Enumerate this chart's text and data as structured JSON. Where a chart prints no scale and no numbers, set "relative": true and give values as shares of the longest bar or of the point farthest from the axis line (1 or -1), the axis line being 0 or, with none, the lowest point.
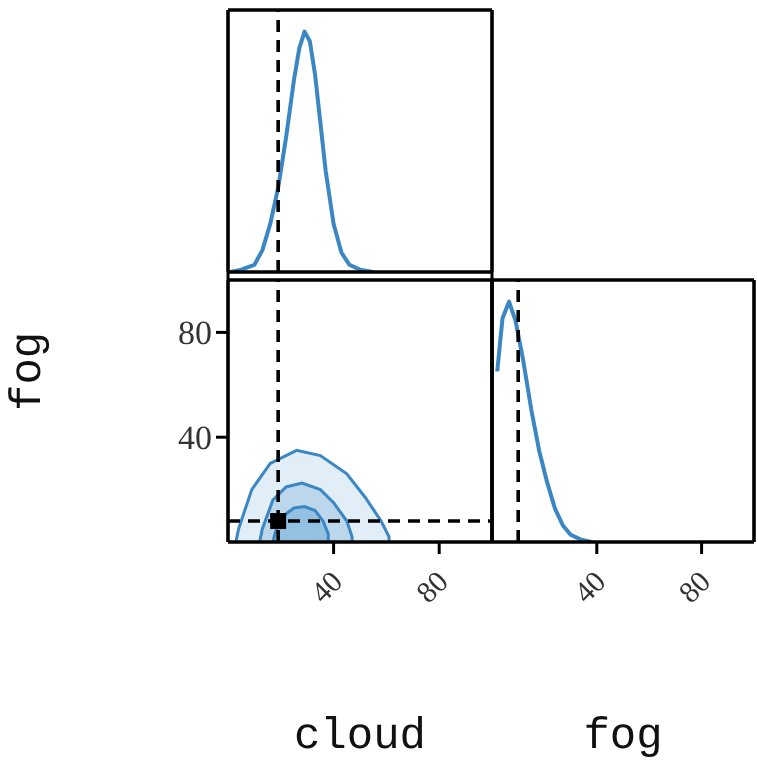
{
  "chart_data": [
    {
      "type": "line",
      "relative": true,
      "marker": "none",
      "line_style": "solid",
      "x": [
        1,
        5,
        10,
        13,
        16,
        19,
        22,
        25,
        27,
        29,
        31,
        33,
        35,
        37,
        40,
        43,
        46,
        50,
        55
      ],
      "series": [
        {
          "color": "#3b87c4",
          "values": [
            0,
            0.01,
            0.03,
            0.09,
            0.2,
            0.35,
            0.56,
            0.8,
            0.93,
            1,
            0.96,
            0.82,
            0.62,
            0.42,
            0.2,
            0.08,
            0.03,
            0.01,
            0
          ]
        }
      ],
      "xlim": [
        0,
        100
      ],
      "xticks": [
        0,
        100
      ],
      "tick_labels": false,
      "ref_lines": [
        {
          "axis": "x",
          "value": 19,
          "color": "#000000",
          "line_style": "dashed"
        }
      ]
    },
    {
      "type": "area",
      "marker": "none",
      "series": [
        {
          "color": "#e1edf7",
          "x": [
            3,
            4,
            9,
            16,
            26,
            35,
            45,
            52,
            58,
            61,
            61
          ],
          "values": [
            0,
            5,
            20,
            30,
            35,
            33,
            26,
            17,
            8,
            2,
            0
          ]
        },
        {
          "color": "#bcd6ec",
          "x": [
            12,
            13,
            17,
            22,
            28,
            35,
            40,
            45,
            47,
            47
          ],
          "values": [
            0,
            5,
            16,
            21,
            22.5,
            20,
            15,
            8,
            2,
            0
          ]
        },
        {
          "color": "#94c0e2",
          "x": [
            17,
            18,
            21,
            25,
            29,
            33,
            36,
            38,
            38
          ],
          "values": [
            0,
            4,
            10,
            13,
            13.5,
            12,
            8,
            3,
            0
          ]
        },
        {
          "type": "scatter",
          "marker": "square",
          "color": "#000000",
          "x": [
            19
          ],
          "values": [
            8
          ]
        }
      ],
      "xlim": [
        0,
        100
      ],
      "ylim": [
        0,
        100
      ],
      "xticks": [
        40,
        80
      ],
      "yticks": [
        40,
        80
      ],
      "xlabel": "cloud",
      "ylabel": "fog",
      "ref_lines": [
        {
          "axis": "x",
          "value": 19,
          "color": "#000000",
          "line_style": "dashed"
        },
        {
          "axis": "y",
          "value": 8,
          "color": "#000000",
          "line_style": "dashed"
        }
      ]
    },
    {
      "type": "line",
      "relative": true,
      "marker": "none",
      "line_style": "solid",
      "x": [
        2,
        4,
        6.5,
        9,
        12,
        15,
        18,
        21,
        24,
        27,
        30,
        34,
        38
      ],
      "series": [
        {
          "color": "#3b87c4",
          "values": [
            0.71,
            0.93,
            1,
            0.92,
            0.75,
            0.55,
            0.38,
            0.25,
            0.14,
            0.07,
            0.03,
            0.01,
            0
          ]
        }
      ],
      "xlim": [
        0,
        100
      ],
      "xticks": [
        40,
        80
      ],
      "tick_labels": "x",
      "xlabel": "fog",
      "ref_lines": [
        {
          "axis": "x",
          "value": 10,
          "color": "#000000",
          "line_style": "dashed"
        }
      ]
    }
  ]
}
